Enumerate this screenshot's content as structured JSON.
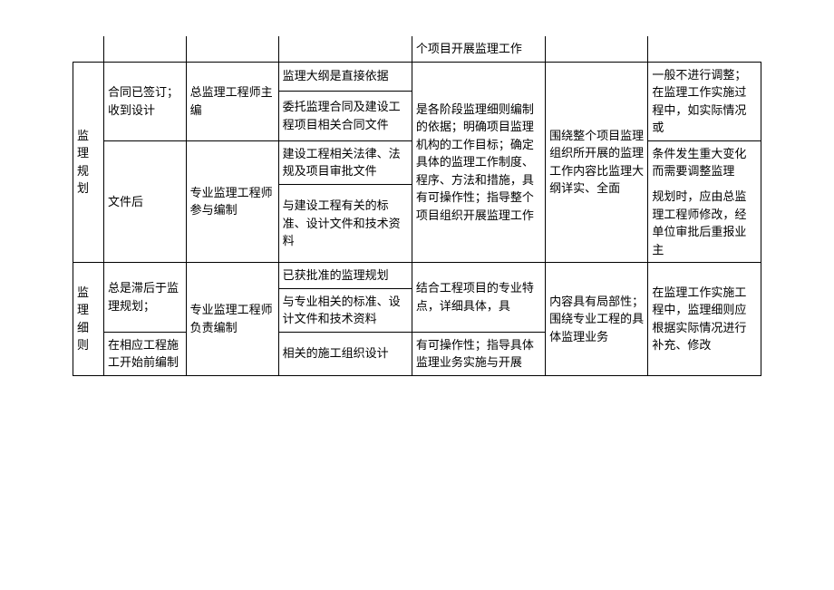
{
  "table": {
    "r1": {
      "c5": "个项目开展监理工作"
    },
    "r2": {
      "c4": "监理大纲是直接依据"
    },
    "r3": {
      "c3": "总监理工程师主编",
      "c4": "委托监理合同及建设工程项目相关合同文件"
    },
    "r4": {
      "c1": "监 理规划",
      "c2": "合同已签订；收到设计",
      "c4": "建设工程相关法律、法规及项目审批文件",
      "c5": "是各阶段监理细则编制的依据；明确项目监理机构的工作目标；确定具体的监理工作制度、程序、方法和措施，具有可操作性；指导整个项目组织开展监理工作",
      "c6": "围绕整个项目监理组织所开展的监理工作内容比监理大纲详实、全面",
      "c7": "一般不进行调整；在监理工作实施过程中，如实际情况或"
    },
    "r5": {
      "c2": "文件后",
      "c3": "专业监理工程师参与编制",
      "c4": "与建设工程有关的标准、设计文件和技术资料",
      "c7": "条件发生重大变化而需要调整监理"
    },
    "r5b": {
      "c7": "规划时，应由总监理工程师修改，经单位审批后重报业主"
    },
    "r6": {
      "c4": "已获批准的监理规划"
    },
    "r7": {
      "c1": "监 理细则",
      "c2": "总是滞后于监理规划；",
      "c4": "与专业相关的标准、设计文件和技术资料",
      "c5": "结合工程项目的专业特点，详细具体，具",
      "c6": "内容具有局部性；围绕专业工程的具体监理业务",
      "c7": "在监理工作实施工程中，监理细则应根据实际情况进行补充、修改"
    },
    "r8": {
      "c2": "在相应工程施工开始前编制",
      "c3": "专业监理工程师负责编制",
      "c4": "相关的施工组织设计",
      "c5": "有可操作性；指导具体监理业务实施与开展"
    }
  }
}
